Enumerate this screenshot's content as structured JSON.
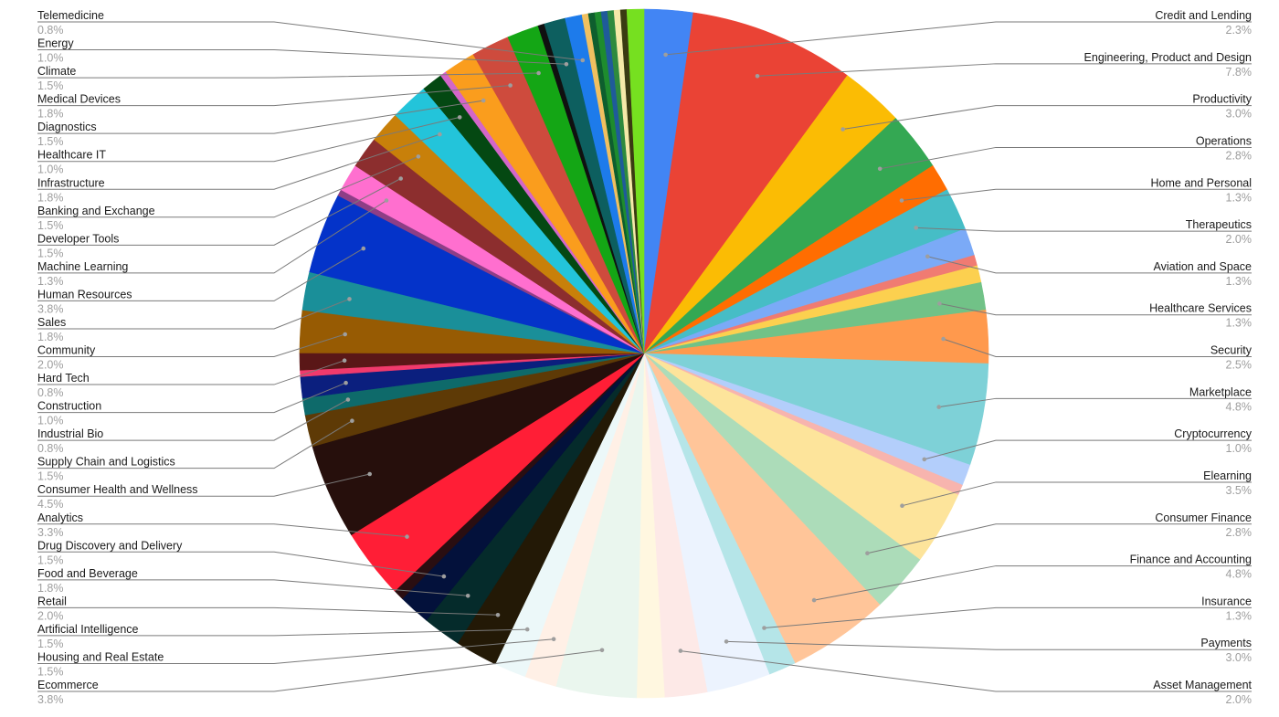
{
  "chart_data": {
    "type": "pie",
    "title": "",
    "start_angle_deg": 0,
    "direction": "clockwise",
    "slices": [
      {
        "label": "Credit and Lending",
        "pct_label": "2.3%",
        "value": 2.3,
        "color": "#4285F4",
        "side": "right"
      },
      {
        "label": "Engineering, Product and Design",
        "pct_label": "7.8%",
        "value": 7.8,
        "color": "#EA4335",
        "side": "right"
      },
      {
        "label": "Productivity",
        "pct_label": "3.0%",
        "value": 3.0,
        "color": "#FBBC04",
        "side": "right"
      },
      {
        "label": "Operations",
        "pct_label": "2.8%",
        "value": 2.8,
        "color": "#34A853",
        "side": "right"
      },
      {
        "label": "Home and Personal",
        "pct_label": "1.3%",
        "value": 1.3,
        "color": "#FF6D01",
        "side": "right"
      },
      {
        "label": "Therapeutics",
        "pct_label": "2.0%",
        "value": 2.0,
        "color": "#46BDC6",
        "side": "right"
      },
      {
        "label": "Aviation and Space",
        "pct_label": "1.3%",
        "value": 1.3,
        "color": "#7BAAF7",
        "side": "right"
      },
      {
        "label": "",
        "pct_label": "",
        "value": 0.5,
        "color": "#F07B72",
        "side": "right"
      },
      {
        "label": "",
        "pct_label": "",
        "value": 0.8,
        "color": "#FCD04F",
        "side": "right"
      },
      {
        "label": "Healthcare Services",
        "pct_label": "1.3%",
        "value": 1.3,
        "color": "#71C287",
        "side": "right"
      },
      {
        "label": "Security",
        "pct_label": "2.5%",
        "value": 2.5,
        "color": "#FF994D",
        "side": "right"
      },
      {
        "label": "Marketplace",
        "pct_label": "4.8%",
        "value": 4.8,
        "color": "#7ED1D7",
        "side": "right"
      },
      {
        "label": "Cryptocurrency",
        "pct_label": "1.0%",
        "value": 1.0,
        "color": "#B3CEFB",
        "side": "right"
      },
      {
        "label": "",
        "pct_label": "",
        "value": 0.5,
        "color": "#F7B4AE",
        "side": "right"
      },
      {
        "label": "Elearning",
        "pct_label": "3.5%",
        "value": 3.5,
        "color": "#FDE49B",
        "side": "right"
      },
      {
        "label": "Consumer Finance",
        "pct_label": "2.8%",
        "value": 2.8,
        "color": "#ACDCB9",
        "side": "right"
      },
      {
        "label": "Finance and Accounting",
        "pct_label": "4.8%",
        "value": 4.8,
        "color": "#FFC599",
        "side": "right"
      },
      {
        "label": "Insurance",
        "pct_label": "1.3%",
        "value": 1.3,
        "color": "#B5E5E8",
        "side": "right"
      },
      {
        "label": "Payments",
        "pct_label": "3.0%",
        "value": 3.0,
        "color": "#ECF3FE",
        "side": "right"
      },
      {
        "label": "Asset Management",
        "pct_label": "2.0%",
        "value": 2.0,
        "color": "#FDE9E7",
        "side": "right"
      },
      {
        "label": "",
        "pct_label": "",
        "value": 1.3,
        "color": "#FFF7E0",
        "side": "right"
      },
      {
        "label": "Ecommerce",
        "pct_label": "3.8%",
        "value": 3.8,
        "color": "#EAF6EE",
        "side": "left"
      },
      {
        "label": "Housing and Real Estate",
        "pct_label": "1.5%",
        "value": 1.5,
        "color": "#FFF0E6",
        "side": "left"
      },
      {
        "label": "Artificial Intelligence",
        "pct_label": "1.5%",
        "value": 1.5,
        "color": "#ECF8F9",
        "side": "left"
      },
      {
        "label": "Retail",
        "pct_label": "2.0%",
        "value": 2.0,
        "color": "#231906",
        "side": "left"
      },
      {
        "label": "Food and Beverage",
        "pct_label": "1.8%",
        "value": 1.8,
        "color": "#052B2B",
        "side": "left"
      },
      {
        "label": "Drug Discovery and Delivery",
        "pct_label": "1.5%",
        "value": 1.5,
        "color": "#03113B",
        "side": "left"
      },
      {
        "label": "",
        "pct_label": "",
        "value": 0.5,
        "color": "#2A0E11",
        "side": "left"
      },
      {
        "label": "Analytics",
        "pct_label": "3.3%",
        "value": 3.3,
        "color": "#FF1E36",
        "side": "left"
      },
      {
        "label": "Consumer Health and Wellness",
        "pct_label": "4.5%",
        "value": 4.5,
        "color": "#260F0C",
        "side": "left"
      },
      {
        "label": "Supply Chain and Logistics",
        "pct_label": "1.5%",
        "value": 1.5,
        "color": "#5E3A06",
        "side": "left"
      },
      {
        "label": "Industrial Bio",
        "pct_label": "0.8%",
        "value": 0.8,
        "color": "#0E6A6A",
        "side": "left"
      },
      {
        "label": "Construction",
        "pct_label": "1.0%",
        "value": 1.0,
        "color": "#0B1F7E",
        "side": "left"
      },
      {
        "label": "",
        "pct_label": "",
        "value": 0.3,
        "color": "#F03A6C",
        "side": "left"
      },
      {
        "label": "Hard Tech",
        "pct_label": "0.8%",
        "value": 0.8,
        "color": "#5A1717",
        "side": "left"
      },
      {
        "label": "Community",
        "pct_label": "2.0%",
        "value": 2.0,
        "color": "#975B03",
        "side": "left"
      },
      {
        "label": "Sales",
        "pct_label": "1.8%",
        "value": 1.8,
        "color": "#1A8F99",
        "side": "left"
      },
      {
        "label": "Human Resources",
        "pct_label": "3.8%",
        "value": 3.8,
        "color": "#0433C9",
        "side": "left"
      },
      {
        "label": "",
        "pct_label": "",
        "value": 0.3,
        "color": "#8E3E86",
        "side": "left"
      },
      {
        "label": "Machine Learning",
        "pct_label": "1.3%",
        "value": 1.3,
        "color": "#FF6FCF",
        "side": "left"
      },
      {
        "label": "Developer Tools",
        "pct_label": "1.5%",
        "value": 1.5,
        "color": "#8C2E2E",
        "side": "left"
      },
      {
        "label": "Banking and Exchange",
        "pct_label": "1.5%",
        "value": 1.5,
        "color": "#C8800A",
        "side": "left"
      },
      {
        "label": "Infrastructure",
        "pct_label": "1.8%",
        "value": 1.8,
        "color": "#23C4DA",
        "side": "left"
      },
      {
        "label": "Healthcare IT",
        "pct_label": "1.0%",
        "value": 1.0,
        "color": "#044812",
        "side": "left"
      },
      {
        "label": "",
        "pct_label": "",
        "value": 0.3,
        "color": "#D366C9",
        "side": "left"
      },
      {
        "label": "Diagnostics",
        "pct_label": "1.5%",
        "value": 1.5,
        "color": "#FA9D1D",
        "side": "left"
      },
      {
        "label": "Medical Devices",
        "pct_label": "1.8%",
        "value": 1.8,
        "color": "#CE4B3D",
        "side": "left"
      },
      {
        "label": "Climate",
        "pct_label": "1.5%",
        "value": 1.5,
        "color": "#14A615",
        "side": "left"
      },
      {
        "label": "",
        "pct_label": "",
        "value": 0.3,
        "color": "#101010",
        "side": "left"
      },
      {
        "label": "Energy",
        "pct_label": "1.0%",
        "value": 1.0,
        "color": "#0D5F5F",
        "side": "left"
      },
      {
        "label": "Telemedicine",
        "pct_label": "0.8%",
        "value": 0.8,
        "color": "#1D7BEB",
        "side": "left"
      },
      {
        "label": "",
        "pct_label": "",
        "value": 0.3,
        "color": "#F0C060",
        "side": "left"
      },
      {
        "label": "",
        "pct_label": "",
        "value": 0.3,
        "color": "#0E5E2E",
        "side": "left"
      },
      {
        "label": "",
        "pct_label": "",
        "value": 0.3,
        "color": "#1E8C2E",
        "side": "left"
      },
      {
        "label": "",
        "pct_label": "",
        "value": 0.3,
        "color": "#1F5B9A",
        "side": "left"
      },
      {
        "label": "",
        "pct_label": "",
        "value": 0.3,
        "color": "#2E8A3E",
        "side": "left"
      },
      {
        "label": "",
        "pct_label": "",
        "value": 0.3,
        "color": "#F5E9A8",
        "side": "left"
      },
      {
        "label": "",
        "pct_label": "",
        "value": 0.3,
        "color": "#3A3A12",
        "side": "left"
      },
      {
        "label": "",
        "pct_label": "",
        "value": 0.8,
        "color": "#76E020",
        "side": "left"
      }
    ]
  }
}
